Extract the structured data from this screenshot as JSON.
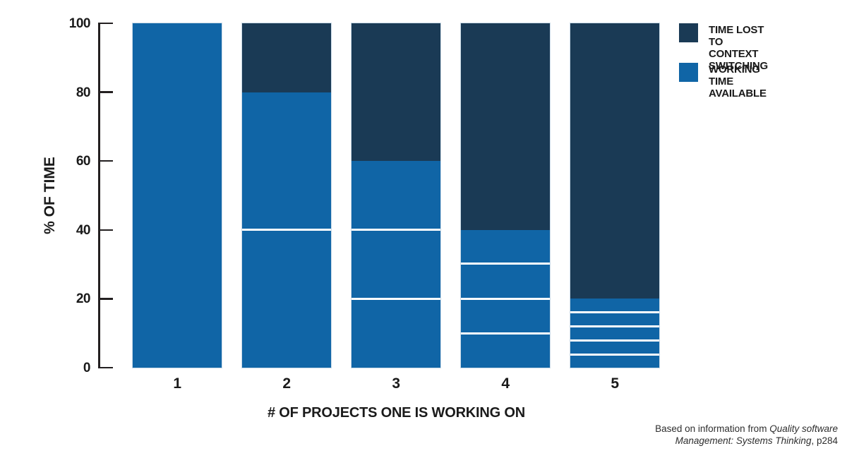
{
  "chart_data": {
    "type": "bar",
    "stacked": true,
    "title": "",
    "xlabel": "# OF PROJECTS ONE IS WORKING ON",
    "ylabel": "% OF TIME",
    "categories": [
      "1",
      "2",
      "3",
      "4",
      "5"
    ],
    "series": [
      {
        "name": "WORKING TIME AVAILABLE",
        "values": [
          100,
          80,
          60,
          40,
          20
        ],
        "color": "#1065a6"
      },
      {
        "name": "TIME LOST TO CONTEXT SWITCHING",
        "values": [
          0,
          20,
          40,
          60,
          80
        ],
        "color": "#1a3a55"
      }
    ],
    "working_time_subsegments_per_bar": [
      1,
      2,
      3,
      4,
      5
    ],
    "subsegment_divider_color": "#ffffff",
    "ylim": [
      0,
      100
    ],
    "yticks": [
      0,
      20,
      40,
      60,
      80,
      100
    ],
    "grid": false,
    "legend_position": "top-right",
    "legend": [
      {
        "label_lines": [
          "TIME LOST TO",
          "CONTEXT SWITCHING"
        ],
        "color": "#1a3a55"
      },
      {
        "label_lines": [
          "WORKING TIME",
          "AVAILABLE"
        ],
        "color": "#1065a6"
      }
    ]
  },
  "attribution": {
    "line1_regular": "Based on information from ",
    "line1_italic": "Quality software",
    "line2_italic": "Management: Systems Thinking",
    "line2_regular": ", p284"
  },
  "colors": {
    "working_blue": "#1065a6",
    "lost_navy": "#1a3a55",
    "axis_black": "#231f20",
    "attribution_gray": "#2e2e2e",
    "background": "#ffffff"
  }
}
